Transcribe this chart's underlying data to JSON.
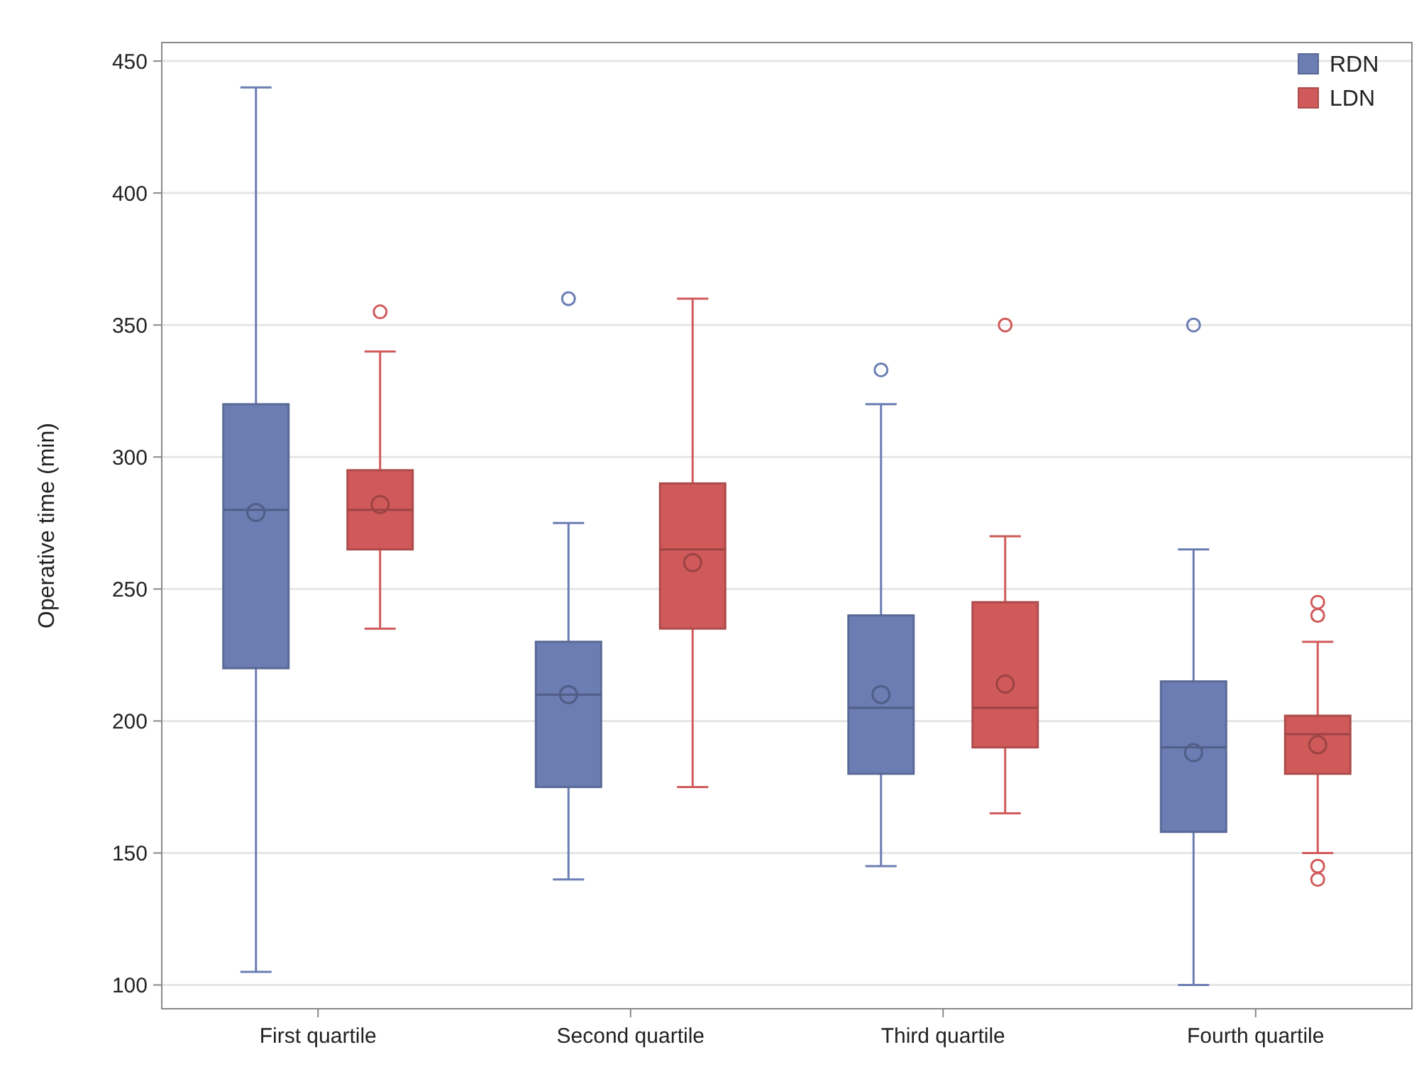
{
  "chart_data": {
    "type": "box",
    "ylabel": "Operative time (min)",
    "categories": [
      "First quartile",
      "Second quartile",
      "Third quartile",
      "Fourth quartile"
    ],
    "ylim": [
      91,
      457
    ],
    "yticks": [
      100,
      150,
      200,
      250,
      300,
      350,
      400,
      450
    ],
    "grid": "y",
    "legend": "top right",
    "series": [
      {
        "name": "RDN",
        "color": "#6b7db3",
        "boxes": [
          {
            "low": 105,
            "q1": 220,
            "median": 280,
            "q3": 320,
            "high": 440,
            "mean": 279
          },
          {
            "low": 140,
            "q1": 175,
            "median": 210,
            "q3": 230,
            "high": 275,
            "mean": 210,
            "outliers": [
              360
            ]
          },
          {
            "low": 145,
            "q1": 180,
            "median": 205,
            "q3": 240,
            "high": 320,
            "mean": 210,
            "outliers": [
              333
            ]
          },
          {
            "low": 100,
            "q1": 158,
            "median": 190,
            "q3": 215,
            "high": 265,
            "mean": 188,
            "outliers": [
              350
            ]
          }
        ]
      },
      {
        "name": "LDN",
        "color": "#d05a5a",
        "boxes": [
          {
            "low": 235,
            "q1": 265,
            "median": 280,
            "q3": 295,
            "high": 340,
            "mean": 282,
            "outliers": [
              355
            ]
          },
          {
            "low": 175,
            "q1": 235,
            "median": 265,
            "q3": 290,
            "high": 360,
            "mean": 260
          },
          {
            "low": 165,
            "q1": 190,
            "median": 205,
            "q3": 245,
            "high": 270,
            "mean": 214,
            "outliers": [
              350
            ]
          },
          {
            "low": 150,
            "q1": 180,
            "median": 195,
            "q3": 202,
            "high": 230,
            "mean": 191,
            "outliers": [
              245,
              240,
              145,
              140
            ]
          }
        ]
      }
    ]
  }
}
